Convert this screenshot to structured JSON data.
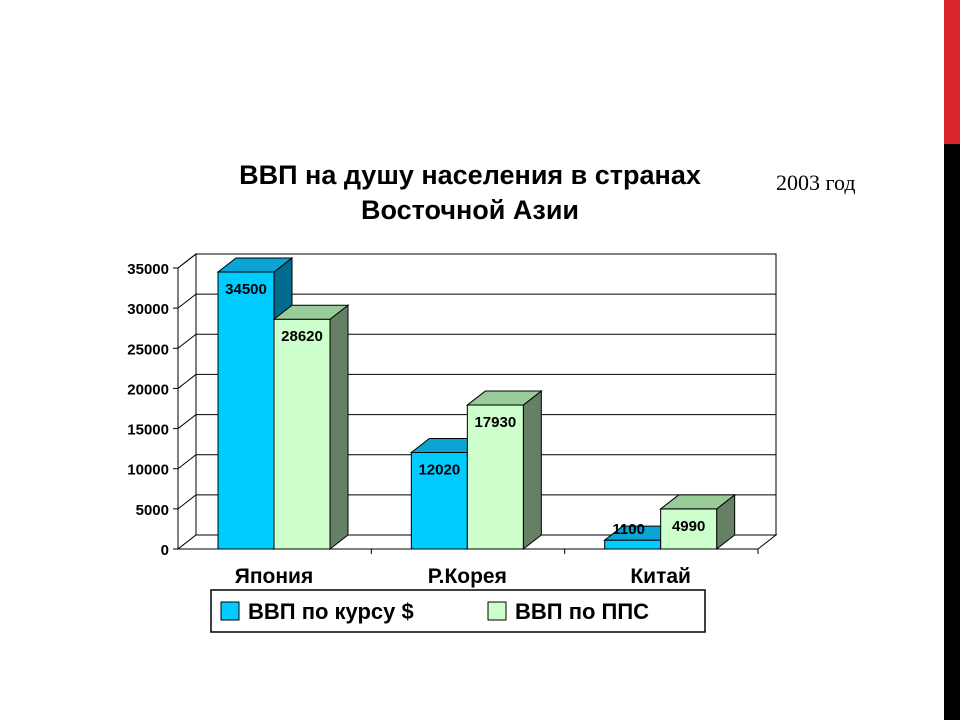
{
  "year_note": "2003 год",
  "chart_data": {
    "type": "bar",
    "title_lines": [
      "ВВП на душу населения в странах",
      "Восточной Азии"
    ],
    "categories": [
      "Япония",
      "Р.Корея",
      "Китай"
    ],
    "series": [
      {
        "name": "ВВП по курсу $",
        "values": [
          34500,
          12020,
          1100
        ],
        "color": "#00ccff",
        "top_color": "#0aa5d4",
        "side_color": "#006b8f"
      },
      {
        "name": "ВВП по ППС",
        "values": [
          28620,
          17930,
          4990
        ],
        "color": "#ccffcc",
        "top_color": "#99cc99",
        "side_color": "#668066"
      }
    ],
    "yticks": [
      "0",
      "5000",
      "10000",
      "15000",
      "20000",
      "25000",
      "30000",
      "35000"
    ],
    "ylim": [
      0,
      35000
    ],
    "grid": true,
    "legend_position": "bottom"
  }
}
